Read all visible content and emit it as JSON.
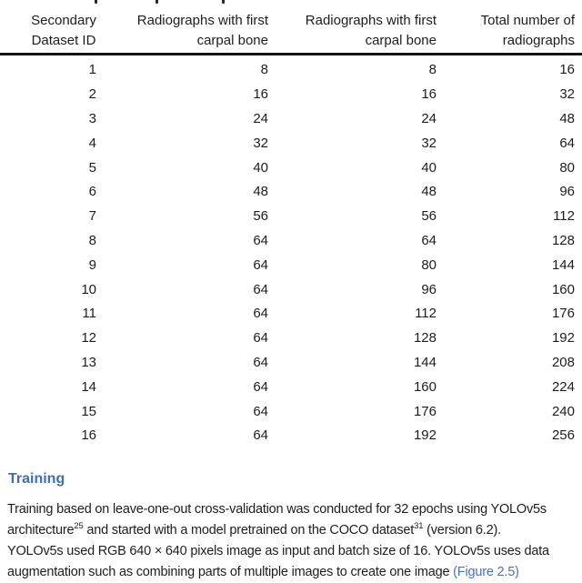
{
  "table": {
    "headers": [
      {
        "line1": "Secondary",
        "line2": "Dataset ID"
      },
      {
        "line1": "Radiographs with first",
        "line2": "carpal bone"
      },
      {
        "line1": "Radiographs with first",
        "line2": "carpal bone"
      },
      {
        "line1": "Total number of",
        "line2": "radiographs"
      }
    ],
    "rows": [
      [
        "1",
        "8",
        "8",
        "16"
      ],
      [
        "2",
        "16",
        "16",
        "32"
      ],
      [
        "3",
        "24",
        "24",
        "48"
      ],
      [
        "4",
        "32",
        "32",
        "64"
      ],
      [
        "5",
        "40",
        "40",
        "80"
      ],
      [
        "6",
        "48",
        "48",
        "96"
      ],
      [
        "7",
        "56",
        "56",
        "112"
      ],
      [
        "8",
        "64",
        "64",
        "128"
      ],
      [
        "9",
        "64",
        "80",
        "144"
      ],
      [
        "10",
        "64",
        "96",
        "160"
      ],
      [
        "11",
        "64",
        "112",
        "176"
      ],
      [
        "12",
        "64",
        "128",
        "192"
      ],
      [
        "13",
        "64",
        "144",
        "208"
      ],
      [
        "14",
        "64",
        "160",
        "224"
      ],
      [
        "15",
        "64",
        "176",
        "240"
      ],
      [
        "16",
        "64",
        "192",
        "256"
      ]
    ]
  },
  "section": {
    "heading": "Training"
  },
  "paragraph": {
    "lines": [
      [
        {
          "t": "Training based on leave-one-out cross-validation was conducted for 32 epochs using YOLOv5s"
        }
      ],
      [
        {
          "t": "architecture"
        },
        {
          "t": "25",
          "sup": true
        },
        {
          "t": " and started with a model pretrained on the COCO dataset"
        },
        {
          "t": "31",
          "sup": true
        },
        {
          "t": " (version 6.2)."
        }
      ],
      [
        {
          "t": "YOLOv5s used RGB 640 × 640 pixels image as input and batch size of 16. YOLOv5s uses data"
        }
      ],
      [
        {
          "t": "augmentation such as combining parts of multiple images to create one image "
        },
        {
          "t": "(Figure 2.5)",
          "link": true
        }
      ]
    ]
  },
  "colors": {
    "heading_blue": "#3E6FB5",
    "link_blue": "#4472C4",
    "text": "#1d1d1d",
    "rule": "#141414"
  }
}
